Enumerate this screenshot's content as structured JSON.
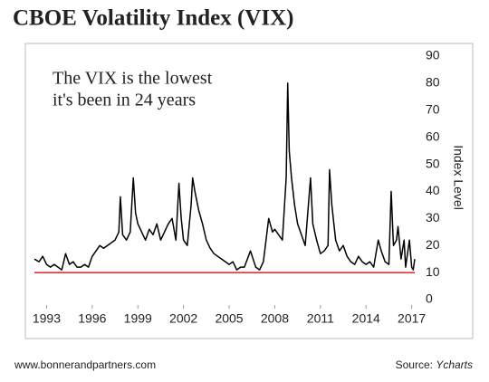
{
  "chart_data": {
    "type": "line",
    "title": "CBOE Volatility Index (VIX)",
    "annotation": [
      "The VIX is the lowest",
      "it's been in 24 years"
    ],
    "y_axis_label": "Index Level",
    "footer_left": "www.bonnerandpartners.com",
    "source_label": "Source:",
    "source": "Ycharts",
    "xlim": [
      1992.2,
      2017.2
    ],
    "xticks": [
      1993,
      1996,
      1999,
      2002,
      2005,
      2008,
      2011,
      2014,
      2017
    ],
    "ylim": [
      0,
      90
    ],
    "yticks": [
      0,
      10,
      20,
      30,
      40,
      50,
      60,
      70,
      80,
      90
    ],
    "grid": false,
    "reference_line": {
      "value": 10,
      "color": "#d9231f"
    },
    "series": [
      {
        "name": "VIX",
        "color": "#000000",
        "x": [
          1992.2,
          1992.5,
          1992.75,
          1993,
          1993.25,
          1993.5,
          1993.75,
          1994,
          1994.25,
          1994.5,
          1994.75,
          1995,
          1995.25,
          1995.5,
          1995.75,
          1996,
          1996.25,
          1996.5,
          1996.75,
          1997,
          1997.25,
          1997.5,
          1997.75,
          1997.85,
          1998,
          1998.25,
          1998.5,
          1998.7,
          1998.85,
          1999,
          1999.25,
          1999.5,
          1999.75,
          2000,
          2000.25,
          2000.5,
          2000.75,
          2001,
          2001.25,
          2001.5,
          2001.7,
          2001.85,
          2002,
          2002.25,
          2002.5,
          2002.6,
          2002.75,
          2003,
          2003.25,
          2003.5,
          2003.75,
          2004,
          2004.25,
          2004.5,
          2004.75,
          2005,
          2005.25,
          2005.5,
          2005.75,
          2006,
          2006.4,
          2006.75,
          2007,
          2007.25,
          2007.6,
          2007.85,
          2008,
          2008.25,
          2008.5,
          2008.75,
          2008.85,
          2008.95,
          2009.1,
          2009.3,
          2009.5,
          2009.75,
          2010,
          2010.35,
          2010.5,
          2010.75,
          2011,
          2011.25,
          2011.5,
          2011.6,
          2011.75,
          2012,
          2012.25,
          2012.5,
          2012.75,
          2013,
          2013.25,
          2013.5,
          2013.75,
          2014,
          2014.25,
          2014.5,
          2014.8,
          2015,
          2015.25,
          2015.5,
          2015.65,
          2015.8,
          2016,
          2016.1,
          2016.3,
          2016.5,
          2016.6,
          2016.85,
          2017,
          2017.1,
          2017.2
        ],
        "values": [
          15,
          14,
          16,
          13,
          12,
          13,
          12,
          11,
          17,
          13,
          14,
          12,
          12,
          13,
          12,
          16,
          18,
          20,
          19,
          20,
          21,
          22,
          25,
          38,
          24,
          22,
          25,
          45,
          32,
          28,
          25,
          22,
          26,
          24,
          28,
          22,
          25,
          28,
          30,
          22,
          43,
          30,
          22,
          20,
          35,
          45,
          40,
          33,
          28,
          22,
          19,
          17,
          16,
          15,
          14,
          13,
          14,
          11,
          12,
          12,
          18,
          12,
          11,
          14,
          30,
          25,
          26,
          24,
          22,
          45,
          80,
          55,
          45,
          35,
          28,
          24,
          20,
          45,
          28,
          22,
          17,
          18,
          20,
          48,
          35,
          22,
          18,
          20,
          16,
          14,
          13,
          16,
          14,
          13,
          14,
          12,
          22,
          18,
          14,
          13,
          40,
          20,
          22,
          27,
          15,
          22,
          12,
          22,
          12,
          11,
          15
        ]
      }
    ]
  }
}
